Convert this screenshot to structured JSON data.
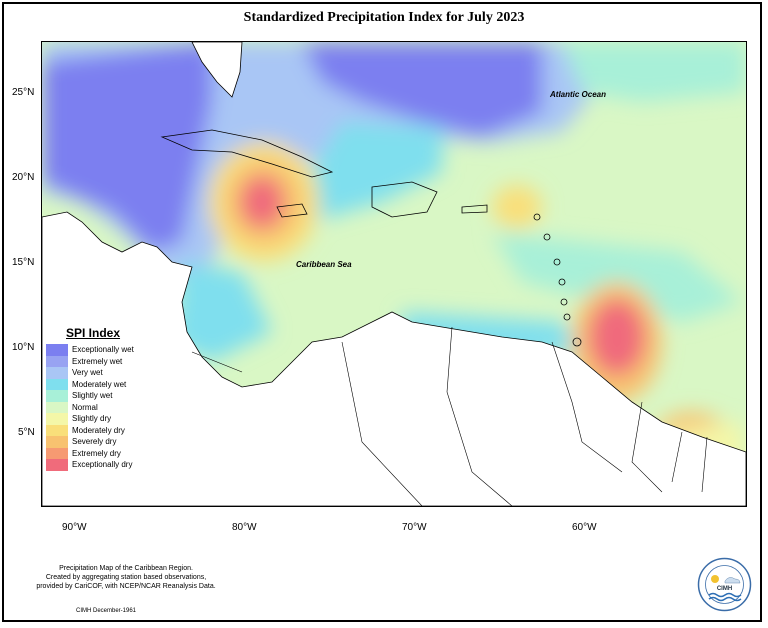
{
  "title": "Standardized Precipitation Index for July 2023",
  "latitudes": [
    "25°N",
    "20°N",
    "15°N",
    "10°N",
    "5°N"
  ],
  "longitudes": [
    "90°W",
    "80°W",
    "70°W",
    "60°W"
  ],
  "labels": {
    "atlantic": "Atlantic Ocean",
    "caribbean": "Caribbean Sea"
  },
  "legend": {
    "title": "SPI Index",
    "items": [
      {
        "label": "Exceptionally wet",
        "color": "#7b7ff0"
      },
      {
        "label": "Extremely wet",
        "color": "#98a3f2"
      },
      {
        "label": "Very wet",
        "color": "#a9c6f5"
      },
      {
        "label": "Moderately wet",
        "color": "#7fdfee"
      },
      {
        "label": "Slightly wet",
        "color": "#a8f0d8"
      },
      {
        "label": "Normal",
        "color": "#d9f7c5"
      },
      {
        "label": "Slightly dry",
        "color": "#f4f7a8"
      },
      {
        "label": "Moderately dry",
        "color": "#f9df7a"
      },
      {
        "label": "Severely dry",
        "color": "#f8c270"
      },
      {
        "label": "Extremely dry",
        "color": "#f69a72"
      },
      {
        "label": "Exceptionally dry",
        "color": "#f06b7b"
      }
    ]
  },
  "footer": {
    "line1": "Precipitation Map of the Caribbean Region.",
    "line2": "Created by aggregating station based observations,",
    "line3": "provided by CariCOF, with NCEP/NCAR Reanalysis Data.",
    "date": "CIMH December-1961"
  },
  "logo": {
    "text": "CIMH"
  }
}
